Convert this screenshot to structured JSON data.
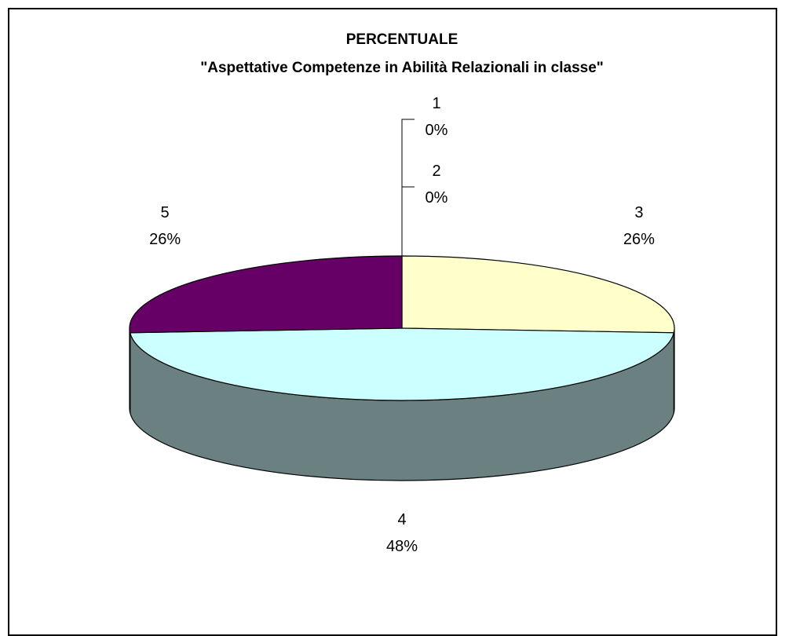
{
  "chart_data": {
    "type": "pie",
    "title": "PERCENTUALE",
    "subtitle": "\"Aspettative Competenze in Abilità Relazionali in classe\"",
    "categories": [
      "1",
      "2",
      "3",
      "4",
      "5"
    ],
    "values": [
      0,
      0,
      26,
      48,
      26
    ],
    "value_labels": [
      "0%",
      "0%",
      "26%",
      "48%",
      "26%"
    ],
    "colors": [
      "#9999ff",
      "#993366",
      "#ffffcc",
      "#ccffff",
      "#660066"
    ],
    "side_colors": [
      "#5c5c99",
      "#5c1f3d",
      "#99997a",
      "#6b8080",
      "#3d003d"
    ],
    "three_d": true,
    "legend": "none"
  }
}
